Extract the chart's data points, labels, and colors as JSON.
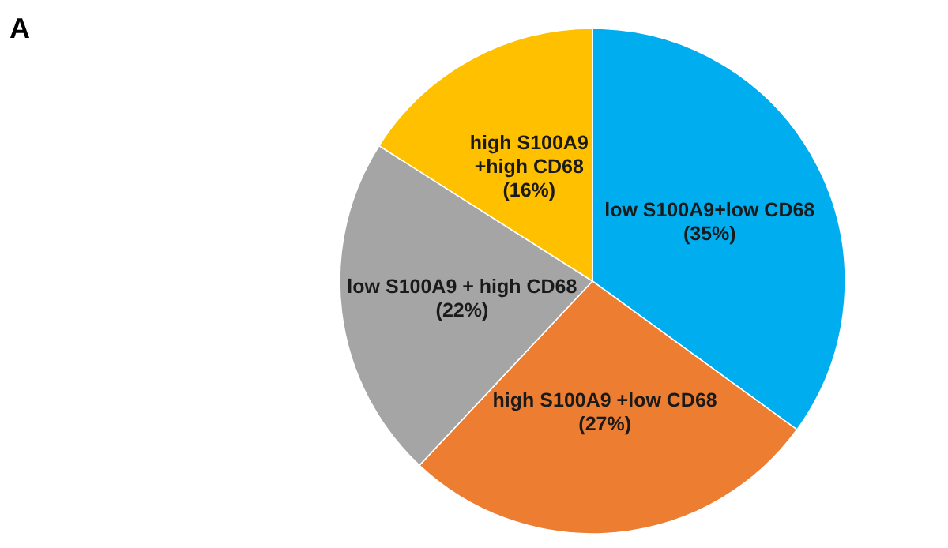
{
  "chart_data": {
    "type": "pie",
    "title": "A",
    "categories": [
      "low S100A9+low CD68",
      "high S100A9 +low CD68",
      "low S100A9 + high CD68",
      "high S100A9\n+high CD68"
    ],
    "values": [
      35,
      27,
      22,
      16
    ],
    "value_labels": [
      "(35%)",
      "(27%)",
      "(22%)",
      "(16%)"
    ],
    "colors": [
      "#00aeef",
      "#ed7d31",
      "#a5a5a5",
      "#ffc000"
    ],
    "legend": false
  }
}
